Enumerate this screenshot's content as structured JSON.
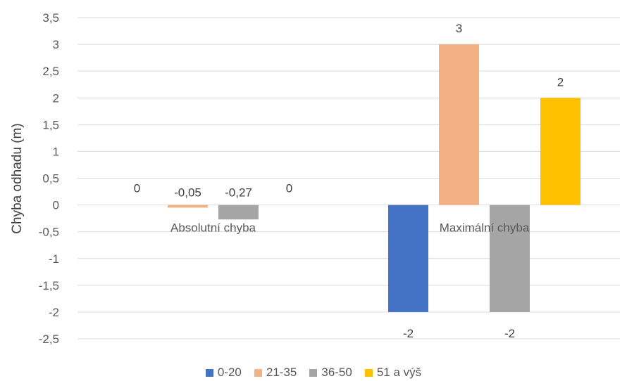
{
  "chart_data": {
    "type": "bar",
    "categories": [
      "Absolutní chyba",
      "Maximální chyba"
    ],
    "series": [
      {
        "name": "0-20",
        "color": "#4472C4",
        "values": [
          0,
          -2
        ],
        "labels": [
          "0",
          "-2"
        ]
      },
      {
        "name": "21-35",
        "color": "#F4B183",
        "values": [
          -0.05,
          3
        ],
        "labels": [
          "-0,05",
          "3"
        ]
      },
      {
        "name": "36-50",
        "color": "#A5A5A5",
        "values": [
          -0.27,
          -2
        ],
        "labels": [
          "-0,27",
          "-2"
        ]
      },
      {
        "name": "51 a výš",
        "color": "#FFC000",
        "values": [
          0,
          2
        ],
        "labels": [
          "0",
          "2"
        ]
      }
    ],
    "ylabel": "Chyba odhadu (m)",
    "ylim": [
      -2.5,
      3.5
    ],
    "yticks": [
      3.5,
      3,
      2.5,
      2,
      1.5,
      1,
      0.5,
      0,
      -0.5,
      -1,
      -1.5,
      -2,
      -2.5
    ],
    "ytick_labels": [
      "3,5",
      "3",
      "2,5",
      "2",
      "1,5",
      "1",
      "0,5",
      "0",
      "-0,5",
      "-1",
      "-1,5",
      "-2",
      "-2,5"
    ],
    "grid": true,
    "legend_position": "bottom"
  }
}
